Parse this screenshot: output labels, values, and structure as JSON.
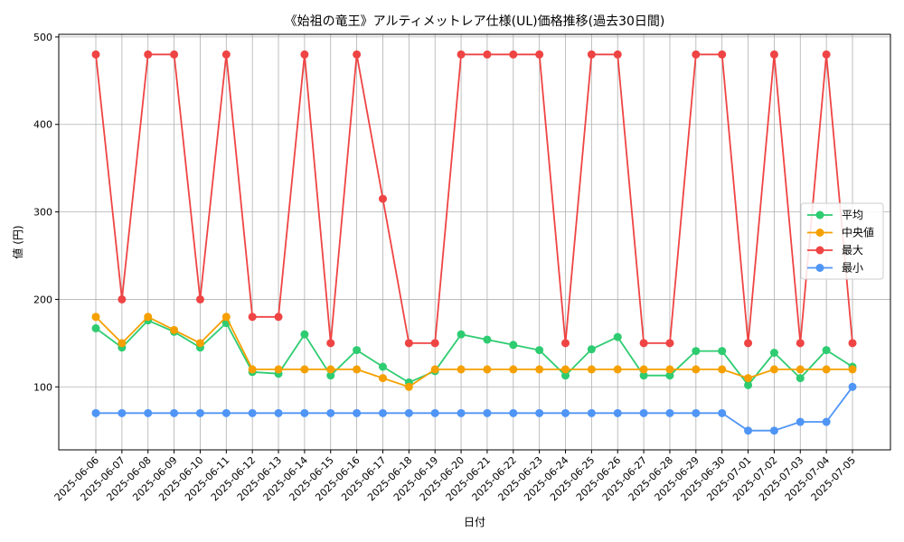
{
  "chart_data": {
    "type": "line",
    "title": "《始祖の竜王》アルティメットレア仕様(UL)価格推移(過去30日間)",
    "xlabel": "日付",
    "ylabel": "値 (円)",
    "ylim": [
      28,
      503
    ],
    "yticks": [
      100,
      200,
      300,
      400,
      500
    ],
    "grid": true,
    "legend_position": "center-right",
    "categories": [
      "2025-06-06",
      "2025-06-07",
      "2025-06-08",
      "2025-06-09",
      "2025-06-10",
      "2025-06-11",
      "2025-06-12",
      "2025-06-13",
      "2025-06-14",
      "2025-06-15",
      "2025-06-16",
      "2025-06-17",
      "2025-06-18",
      "2025-06-19",
      "2025-06-20",
      "2025-06-21",
      "2025-06-22",
      "2025-06-23",
      "2025-06-24",
      "2025-06-25",
      "2025-06-26",
      "2025-06-27",
      "2025-06-28",
      "2025-06-29",
      "2025-06-30",
      "2025-07-01",
      "2025-07-02",
      "2025-07-03",
      "2025-07-04",
      "2025-07-05"
    ],
    "series": [
      {
        "name": "平均",
        "color": "#2ecc71",
        "values": [
          167,
          145,
          176,
          163,
          145,
          173,
          117,
          115,
          160,
          113,
          142,
          123,
          105,
          118,
          160,
          154,
          148,
          142,
          113,
          143,
          157,
          113,
          113,
          141,
          141,
          102,
          139,
          110,
          142,
          123
        ]
      },
      {
        "name": "中央値",
        "color": "#f5a000",
        "values": [
          180,
          150,
          180,
          165,
          150,
          180,
          120,
          120,
          120,
          120,
          120,
          110,
          100,
          120,
          120,
          120,
          120,
          120,
          120,
          120,
          120,
          120,
          120,
          120,
          120,
          110,
          120,
          120,
          120,
          120
        ]
      },
      {
        "name": "最大",
        "color": "#ef4444",
        "values": [
          480,
          200,
          480,
          480,
          200,
          480,
          180,
          180,
          480,
          150,
          480,
          315,
          150,
          150,
          480,
          480,
          480,
          480,
          150,
          480,
          480,
          150,
          150,
          480,
          480,
          150,
          480,
          150,
          480,
          150
        ]
      },
      {
        "name": "最小",
        "color": "#4f95f5",
        "values": [
          70,
          70,
          70,
          70,
          70,
          70,
          70,
          70,
          70,
          70,
          70,
          70,
          70,
          70,
          70,
          70,
          70,
          70,
          70,
          70,
          70,
          70,
          70,
          70,
          70,
          50,
          50,
          60,
          60,
          100
        ]
      }
    ]
  }
}
